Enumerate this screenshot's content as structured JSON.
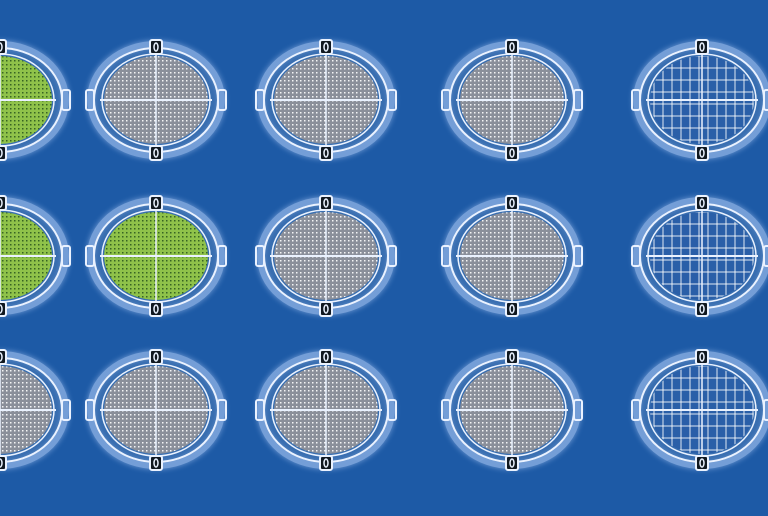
{
  "scene": {
    "background": "#1d5aa6",
    "ring_color": "#eaf2ff",
    "glow_color": "#bcd6ff",
    "rows": [
      [
        "green",
        "dots",
        "dots",
        "dots",
        "grid"
      ],
      [
        "green",
        "green",
        "dots",
        "dots",
        "grid"
      ],
      [
        "dots",
        "dots",
        "dots",
        "dots",
        "grid"
      ]
    ],
    "styles": {
      "green": {
        "fill": "#8fc24a",
        "dot": "#2d5a1f"
      },
      "dots": {
        "fill": "#8a8f9a",
        "dot": "#ffffff"
      },
      "grid": {
        "fill": "#2a5fa8",
        "dot": "#ffffff"
      }
    }
  }
}
